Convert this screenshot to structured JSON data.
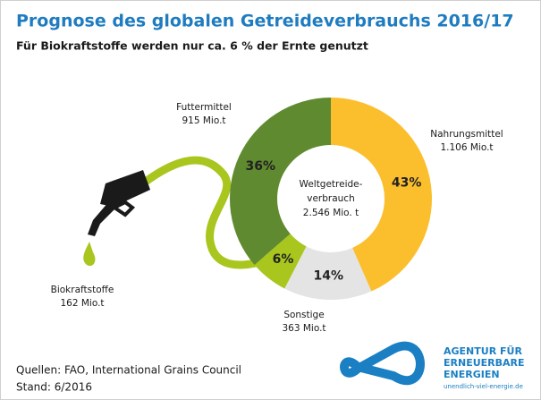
{
  "chart_data": {
    "type": "donut",
    "title": "Prognose des globalen Getreideverbrauchs 2016/17",
    "subtitle": "Für Biokraftstoffe werden nur ca. 6 % der Ernte genutzt",
    "center_label": [
      "Weltgetreide-",
      "verbrauch",
      "2.546 Mio. t"
    ],
    "categories": [
      "Nahrungsmittel",
      "Sonstige",
      "Biokraftstoffe",
      "Futtermittel"
    ],
    "amounts": [
      "1.106 Mio.t",
      "363 Mio.t",
      "162 Mio.t",
      "915 Mio.t"
    ],
    "values": [
      43,
      14,
      6,
      36
    ],
    "value_labels": [
      "43%",
      "14%",
      "6%",
      "36%"
    ],
    "colors": [
      "#fbbf2e",
      "#e4e4e4",
      "#a8c61e",
      "#5f8a2f"
    ],
    "sources": [
      "Quellen: FAO, International Grains Council",
      "Stand: 6/2016"
    ],
    "logo": [
      "AGENTUR FÜR",
      "ERNEUERBARE",
      "ENERGIEN",
      "unendlich-viel-energie.de"
    ]
  }
}
